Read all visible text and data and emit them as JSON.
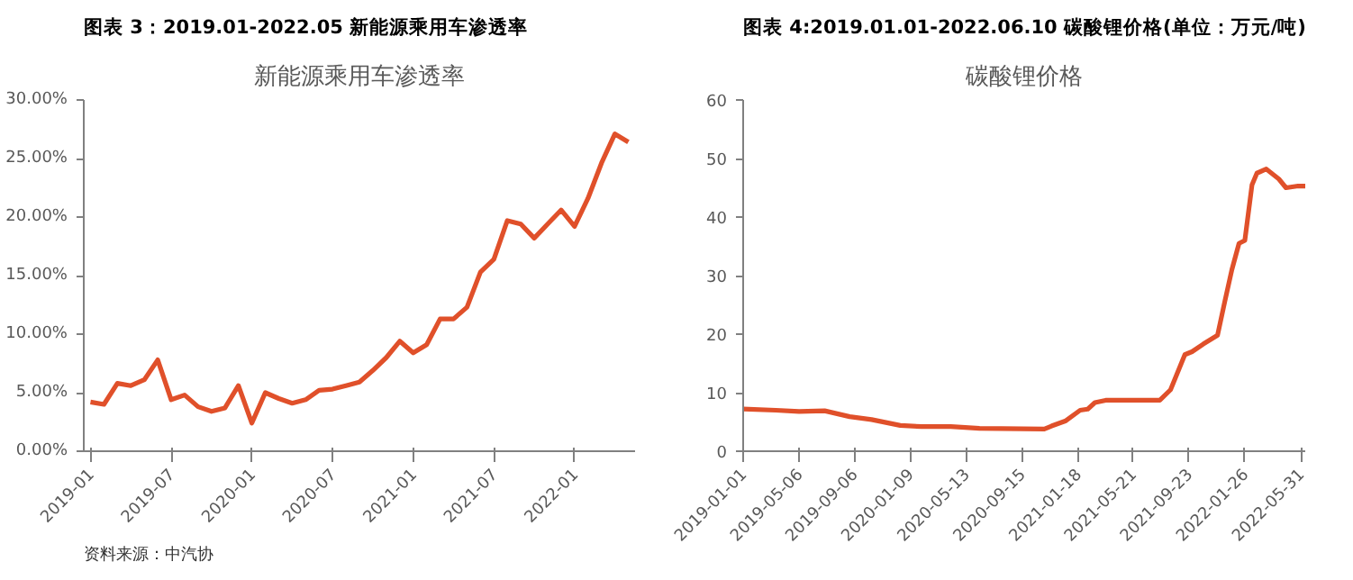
{
  "chart_data": [
    {
      "type": "line",
      "title": "图表 3：2019.01-2022.05 新能源乘用车渗透率",
      "subtitle": "新能源乘用车渗透率",
      "categories": [
        "2019-01",
        null,
        null,
        null,
        null,
        null,
        "2019-07",
        null,
        null,
        null,
        null,
        null,
        "2020-01",
        null,
        null,
        null,
        null,
        null,
        "2020-07",
        null,
        null,
        null,
        null,
        null,
        "2021-01",
        null,
        null,
        null,
        null,
        null,
        "2021-07",
        null,
        null,
        null,
        null,
        null,
        "2022-01",
        null,
        null,
        null,
        null
      ],
      "series": [
        {
          "color": "#e0502a",
          "values": [
            4.2,
            4.0,
            5.8,
            5.6,
            6.1,
            7.8,
            4.4,
            4.8,
            3.8,
            3.4,
            3.7,
            5.6,
            2.4,
            5.0,
            4.5,
            4.1,
            4.4,
            5.2,
            5.3,
            5.6,
            5.9,
            6.9,
            8.0,
            9.4,
            8.4,
            9.1,
            11.3,
            11.3,
            12.3,
            15.3,
            16.4,
            19.7,
            19.4,
            18.2,
            19.4,
            20.6,
            19.2,
            21.6,
            24.6,
            27.1,
            26.4
          ]
        }
      ],
      "ylim": [
        0,
        30
      ],
      "yticks": [
        {
          "value": 0,
          "label": "0.00%"
        },
        {
          "value": 5,
          "label": "5.00%"
        },
        {
          "value": 10,
          "label": "10.00%"
        },
        {
          "value": 15,
          "label": "15.00%"
        },
        {
          "value": 20,
          "label": "20.00%"
        },
        {
          "value": 25,
          "label": "25.00%"
        },
        {
          "value": 30,
          "label": "30.00%"
        }
      ],
      "grid": false,
      "annotations": [
        "资料来源：中汽协"
      ]
    },
    {
      "type": "line",
      "title": "图表 4:2019.01.01-2022.06.10 碳酸锂价格(单位：万元/吨)",
      "subtitle": "碳酸锂价格",
      "x": [
        "2019-01-01",
        "2019-03-15",
        "2019-05-06",
        "2019-07-02",
        "2019-08-27",
        "2019-10-15",
        "2019-12-18",
        "2020-02-04",
        "2020-04-09",
        "2020-06-12",
        "2020-11-04",
        "2020-11-20",
        "2020-12-22",
        "2021-01-23",
        "2021-02-09",
        "2021-02-25",
        "2021-03-21",
        "2021-07-20",
        "2021-08-13",
        "2021-09-14",
        "2021-09-30",
        "2021-10-25",
        "2021-11-26",
        "2021-12-12",
        "2021-12-28",
        "2022-01-13",
        "2022-01-26",
        "2022-02-11",
        "2022-02-22",
        "2022-03-15",
        "2022-04-12",
        "2022-04-28",
        "2022-05-25",
        "2022-06-10"
      ],
      "series": [
        {
          "color": "#e0502a",
          "values": [
            7.2,
            7.0,
            6.8,
            6.9,
            5.9,
            5.4,
            4.4,
            4.2,
            4.2,
            3.9,
            3.8,
            4.3,
            5.2,
            7.0,
            7.2,
            8.3,
            8.7,
            8.7,
            10.5,
            16.5,
            17.0,
            18.3,
            19.8,
            25.5,
            31.0,
            35.5,
            36.0,
            45.5,
            47.5,
            48.2,
            46.5,
            45.0,
            45.3,
            45.3
          ]
        }
      ],
      "xlim": [
        "2019-01-01",
        "2022-06-10"
      ],
      "xticks": [
        "2019-01-01",
        "2019-05-06",
        "2019-09-06",
        "2020-01-09",
        "2020-05-13",
        "2020-09-15",
        "2021-01-18",
        "2021-05-21",
        "2021-09-23",
        "2022-01-26",
        "2022-05-31"
      ],
      "ylim": [
        0,
        60
      ],
      "yticks": [
        0,
        10,
        20,
        30,
        40,
        50,
        60
      ],
      "grid": false
    }
  ]
}
